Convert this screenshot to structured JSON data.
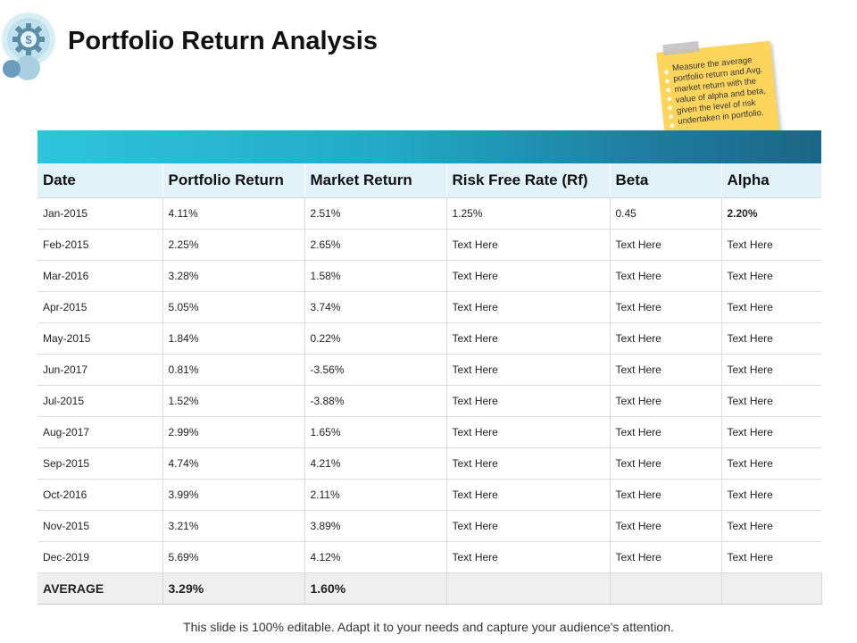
{
  "title": "Portfolio Return Analysis",
  "note": "Measure the average portfolio return and Avg. market return with the value of alpha and beta, given the level of risk undertaken in portfolio.",
  "table": {
    "headers": [
      "Date",
      "Portfolio Return",
      "Market Return",
      "Risk Free Rate (Rf)",
      "Beta",
      "Alpha"
    ],
    "rows": [
      [
        "Jan-2015",
        "4.11%",
        "2.51%",
        "1.25%",
        "0.45",
        "2.20%"
      ],
      [
        "Feb-2015",
        "2.25%",
        "2.65%",
        "Text Here",
        "Text Here",
        "Text Here"
      ],
      [
        "Mar-2016",
        "3.28%",
        "1.58%",
        "Text Here",
        "Text Here",
        "Text Here"
      ],
      [
        "Apr-2015",
        "5.05%",
        "3.74%",
        "Text Here",
        "Text Here",
        "Text Here"
      ],
      [
        "May-2015",
        "1.84%",
        "0.22%",
        "Text Here",
        "Text Here",
        "Text Here"
      ],
      [
        "Jun-2017",
        "0.81%",
        "-3.56%",
        "Text Here",
        "Text Here",
        "Text Here"
      ],
      [
        "Jul-2015",
        "1.52%",
        "-3.88%",
        "Text Here",
        "Text Here",
        "Text Here"
      ],
      [
        "Aug-2017",
        "2.99%",
        "1.65%",
        "Text Here",
        "Text Here",
        "Text Here"
      ],
      [
        "Sep-2015",
        "4.74%",
        "4.21%",
        "Text Here",
        "Text Here",
        "Text Here"
      ],
      [
        "Oct-2016",
        "3.99%",
        "2.11%",
        "Text Here",
        "Text Here",
        "Text Here"
      ],
      [
        "Nov-2015",
        "3.21%",
        "3.89%",
        "Text Here",
        "Text Here",
        "Text Here"
      ],
      [
        "Dec-2019",
        "5.69%",
        "4.12%",
        "Text Here",
        "Text Here",
        "Text Here"
      ]
    ],
    "average": [
      "AVERAGE",
      "3.29%",
      "1.60%",
      "",
      "",
      ""
    ]
  },
  "footer": "This slide is 100% editable. Adapt it to your needs and capture your audience's attention.",
  "colors": {
    "banner_start": "#2fc4dc",
    "banner_end": "#1b6686",
    "header_bg": "#e1f2f8",
    "note_bg": "#fdd55d",
    "average_bg": "#efefef"
  },
  "icons": {
    "logo": "gear-dollar-icon"
  }
}
